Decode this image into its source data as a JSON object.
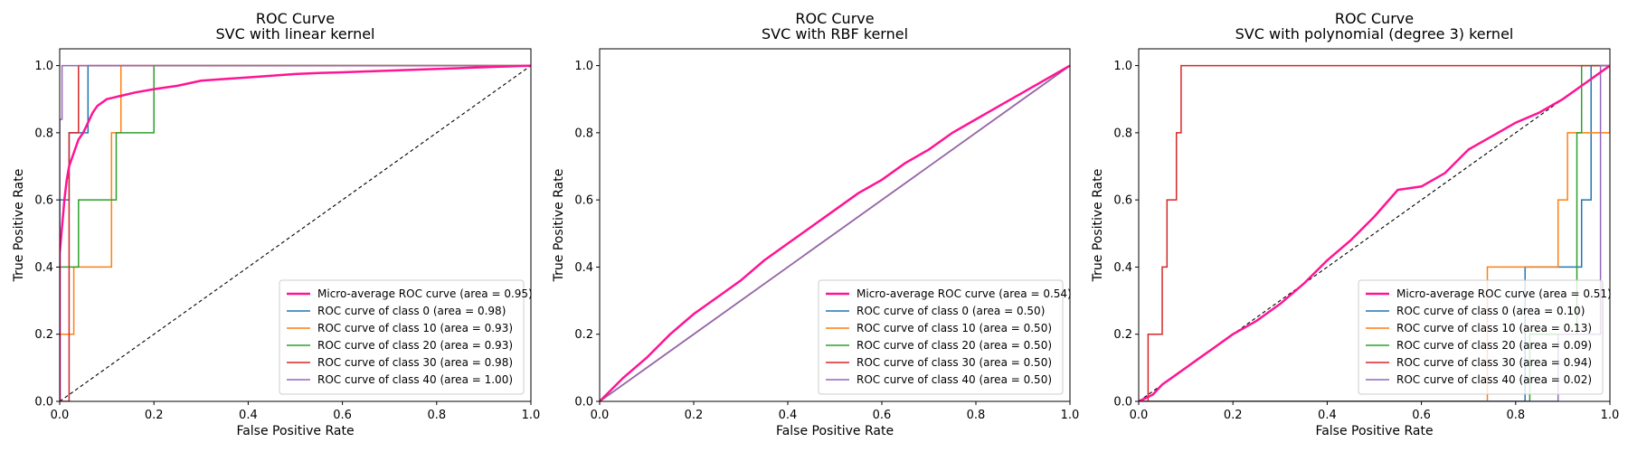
{
  "chart_data": [
    {
      "type": "line",
      "title": "ROC Curve",
      "subtitle": "SVC with linear kernel",
      "xlabel": "False Positive Rate",
      "ylabel": "True Positive Rate",
      "xlim": [
        0.0,
        1.0
      ],
      "ylim": [
        0.0,
        1.05
      ],
      "xticks": [
        "0.0",
        "0.2",
        "0.4",
        "0.6",
        "0.8",
        "1.0"
      ],
      "yticks": [
        "0.0",
        "0.2",
        "0.4",
        "0.6",
        "0.8",
        "1.0"
      ],
      "grid": false,
      "legend_position": "lower-right",
      "diagonal": true,
      "series": [
        {
          "name": "Micro-average ROC curve (area = 0.95)",
          "color": "#ff1493",
          "width": 2.5,
          "points": [
            [
              0,
              0
            ],
            [
              0,
              0.44
            ],
            [
              0.005,
              0.52
            ],
            [
              0.01,
              0.6
            ],
            [
              0.015,
              0.66
            ],
            [
              0.02,
              0.7
            ],
            [
              0.03,
              0.74
            ],
            [
              0.04,
              0.78
            ],
            [
              0.05,
              0.8
            ],
            [
              0.06,
              0.83
            ],
            [
              0.07,
              0.86
            ],
            [
              0.08,
              0.88
            ],
            [
              0.1,
              0.9
            ],
            [
              0.13,
              0.91
            ],
            [
              0.16,
              0.92
            ],
            [
              0.2,
              0.93
            ],
            [
              0.25,
              0.94
            ],
            [
              0.3,
              0.955
            ],
            [
              0.35,
              0.96
            ],
            [
              0.4,
              0.965
            ],
            [
              0.45,
              0.97
            ],
            [
              0.5,
              0.975
            ],
            [
              0.55,
              0.978
            ],
            [
              0.6,
              0.98
            ],
            [
              0.7,
              0.985
            ],
            [
              0.8,
              0.99
            ],
            [
              0.9,
              0.995
            ],
            [
              1,
              1
            ]
          ]
        },
        {
          "name": "ROC curve of class 0 (area = 0.98)",
          "color": "#1f77b4",
          "width": 1.5,
          "points": [
            [
              0,
              0
            ],
            [
              0,
              0.6
            ],
            [
              0.02,
              0.6
            ],
            [
              0.02,
              0.8
            ],
            [
              0.05,
              0.8
            ],
            [
              0.05,
              0.8
            ],
            [
              0.06,
              0.8
            ],
            [
              0.06,
              1.0
            ],
            [
              1,
              1
            ]
          ]
        },
        {
          "name": "ROC curve of class 10 (area = 0.93)",
          "color": "#ff7f0e",
          "width": 1.5,
          "points": [
            [
              0,
              0
            ],
            [
              0,
              0.2
            ],
            [
              0.03,
              0.2
            ],
            [
              0.03,
              0.4
            ],
            [
              0.11,
              0.4
            ],
            [
              0.11,
              0.8
            ],
            [
              0.13,
              0.8
            ],
            [
              0.13,
              1.0
            ],
            [
              1,
              1
            ]
          ]
        },
        {
          "name": "ROC curve of class 20 (area = 0.93)",
          "color": "#2ca02c",
          "width": 1.5,
          "points": [
            [
              0,
              0
            ],
            [
              0,
              0.4
            ],
            [
              0.04,
              0.4
            ],
            [
              0.04,
              0.6
            ],
            [
              0.12,
              0.6
            ],
            [
              0.12,
              0.8
            ],
            [
              0.2,
              0.8
            ],
            [
              0.2,
              1.0
            ],
            [
              1,
              1
            ]
          ]
        },
        {
          "name": "ROC curve of class 30 (area = 0.98)",
          "color": "#d62728",
          "width": 1.5,
          "points": [
            [
              0,
              0
            ],
            [
              0.02,
              0
            ],
            [
              0.02,
              0.8
            ],
            [
              0.04,
              0.8
            ],
            [
              0.04,
              1.0
            ],
            [
              1,
              1
            ]
          ]
        },
        {
          "name": "ROC curve of class 40 (area = 1.00)",
          "color": "#9467bd",
          "width": 1.5,
          "points": [
            [
              0,
              0
            ],
            [
              0,
              0.84
            ],
            [
              0.005,
              0.84
            ],
            [
              0.005,
              1.0
            ],
            [
              1,
              1
            ]
          ]
        }
      ]
    },
    {
      "type": "line",
      "title": "ROC Curve",
      "subtitle": "SVC with RBF kernel",
      "xlabel": "False Positive Rate",
      "ylabel": "True Positive Rate",
      "xlim": [
        0.0,
        1.0
      ],
      "ylim": [
        0.0,
        1.05
      ],
      "xticks": [
        "0.0",
        "0.2",
        "0.4",
        "0.6",
        "0.8",
        "1.0"
      ],
      "yticks": [
        "0.0",
        "0.2",
        "0.4",
        "0.6",
        "0.8",
        "1.0"
      ],
      "grid": false,
      "legend_position": "lower-right",
      "diagonal": true,
      "series": [
        {
          "name": "Micro-average ROC curve (area = 0.54)",
          "color": "#ff1493",
          "width": 2.5,
          "points": [
            [
              0,
              0
            ],
            [
              0.05,
              0.07
            ],
            [
              0.1,
              0.13
            ],
            [
              0.15,
              0.2
            ],
            [
              0.2,
              0.26
            ],
            [
              0.25,
              0.31
            ],
            [
              0.3,
              0.36
            ],
            [
              0.35,
              0.42
            ],
            [
              0.4,
              0.47
            ],
            [
              0.45,
              0.52
            ],
            [
              0.5,
              0.57
            ],
            [
              0.55,
              0.62
            ],
            [
              0.6,
              0.66
            ],
            [
              0.65,
              0.71
            ],
            [
              0.7,
              0.75
            ],
            [
              0.75,
              0.8
            ],
            [
              0.8,
              0.84
            ],
            [
              0.85,
              0.88
            ],
            [
              0.9,
              0.92
            ],
            [
              0.95,
              0.96
            ],
            [
              1,
              1
            ]
          ]
        },
        {
          "name": "ROC curve of class 0 (area = 0.50)",
          "color": "#1f77b4",
          "width": 1.5,
          "points": [
            [
              0,
              0
            ],
            [
              1,
              1
            ]
          ]
        },
        {
          "name": "ROC curve of class 10 (area = 0.50)",
          "color": "#ff7f0e",
          "width": 1.5,
          "points": [
            [
              0,
              0
            ],
            [
              1,
              1
            ]
          ]
        },
        {
          "name": "ROC curve of class 20 (area = 0.50)",
          "color": "#2ca02c",
          "width": 1.5,
          "points": [
            [
              0,
              0
            ],
            [
              1,
              1
            ]
          ]
        },
        {
          "name": "ROC curve of class 30 (area = 0.50)",
          "color": "#d62728",
          "width": 1.5,
          "points": [
            [
              0,
              0
            ],
            [
              1,
              1
            ]
          ]
        },
        {
          "name": "ROC curve of class 40 (area = 0.50)",
          "color": "#9467bd",
          "width": 1.5,
          "points": [
            [
              0,
              0
            ],
            [
              1,
              1
            ]
          ]
        }
      ]
    },
    {
      "type": "line",
      "title": "ROC Curve",
      "subtitle": "SVC with polynomial (degree 3) kernel",
      "xlabel": "False Positive Rate",
      "ylabel": "True Positive Rate",
      "xlim": [
        0.0,
        1.0
      ],
      "ylim": [
        0.0,
        1.05
      ],
      "xticks": [
        "0.0",
        "0.2",
        "0.4",
        "0.6",
        "0.8",
        "1.0"
      ],
      "yticks": [
        "0.0",
        "0.2",
        "0.4",
        "0.6",
        "0.8",
        "1.0"
      ],
      "grid": false,
      "legend_position": "lower-right",
      "diagonal": true,
      "series": [
        {
          "name": "Micro-average ROC curve (area = 0.51)",
          "color": "#ff1493",
          "width": 2.5,
          "points": [
            [
              0,
              0
            ],
            [
              0.03,
              0.02
            ],
            [
              0.05,
              0.05
            ],
            [
              0.08,
              0.08
            ],
            [
              0.1,
              0.1
            ],
            [
              0.13,
              0.13
            ],
            [
              0.16,
              0.16
            ],
            [
              0.2,
              0.2
            ],
            [
              0.25,
              0.24
            ],
            [
              0.3,
              0.29
            ],
            [
              0.35,
              0.35
            ],
            [
              0.4,
              0.42
            ],
            [
              0.45,
              0.48
            ],
            [
              0.5,
              0.55
            ],
            [
              0.55,
              0.63
            ],
            [
              0.6,
              0.64
            ],
            [
              0.65,
              0.68
            ],
            [
              0.7,
              0.75
            ],
            [
              0.75,
              0.79
            ],
            [
              0.8,
              0.83
            ],
            [
              0.85,
              0.86
            ],
            [
              0.9,
              0.9
            ],
            [
              0.95,
              0.95
            ],
            [
              1,
              1
            ]
          ]
        },
        {
          "name": "ROC curve of class 0 (area = 0.10)",
          "color": "#1f77b4",
          "width": 1.5,
          "points": [
            [
              0,
              0
            ],
            [
              0.82,
              0
            ],
            [
              0.82,
              0.4
            ],
            [
              0.94,
              0.4
            ],
            [
              0.94,
              0.6
            ],
            [
              0.96,
              0.6
            ],
            [
              0.96,
              1.0
            ],
            [
              1,
              1
            ]
          ]
        },
        {
          "name": "ROC curve of class 10 (area = 0.13)",
          "color": "#ff7f0e",
          "width": 1.5,
          "points": [
            [
              0,
              0
            ],
            [
              0.74,
              0
            ],
            [
              0.74,
              0.4
            ],
            [
              0.89,
              0.4
            ],
            [
              0.89,
              0.6
            ],
            [
              0.91,
              0.6
            ],
            [
              0.91,
              0.8
            ],
            [
              1,
              0.8
            ],
            [
              1,
              1
            ]
          ]
        },
        {
          "name": "ROC curve of class 20 (area = 0.09)",
          "color": "#2ca02c",
          "width": 1.5,
          "points": [
            [
              0,
              0
            ],
            [
              0.83,
              0
            ],
            [
              0.83,
              0.2
            ],
            [
              0.93,
              0.2
            ],
            [
              0.93,
              0.8
            ],
            [
              0.94,
              0.8
            ],
            [
              0.94,
              1.0
            ],
            [
              1,
              1
            ]
          ]
        },
        {
          "name": "ROC curve of class 30 (area = 0.94)",
          "color": "#d62728",
          "width": 1.5,
          "points": [
            [
              0,
              0
            ],
            [
              0.02,
              0
            ],
            [
              0.02,
              0.2
            ],
            [
              0.05,
              0.2
            ],
            [
              0.05,
              0.4
            ],
            [
              0.06,
              0.4
            ],
            [
              0.06,
              0.6
            ],
            [
              0.08,
              0.6
            ],
            [
              0.08,
              0.8
            ],
            [
              0.09,
              0.8
            ],
            [
              0.09,
              1.0
            ],
            [
              1,
              1
            ]
          ]
        },
        {
          "name": "ROC curve of class 40 (area = 0.02)",
          "color": "#9467bd",
          "width": 1.5,
          "points": [
            [
              0,
              0
            ],
            [
              0.89,
              0
            ],
            [
              0.89,
              0.2
            ],
            [
              0.98,
              0.2
            ],
            [
              0.98,
              1.0
            ],
            [
              1,
              1
            ]
          ]
        }
      ]
    }
  ]
}
